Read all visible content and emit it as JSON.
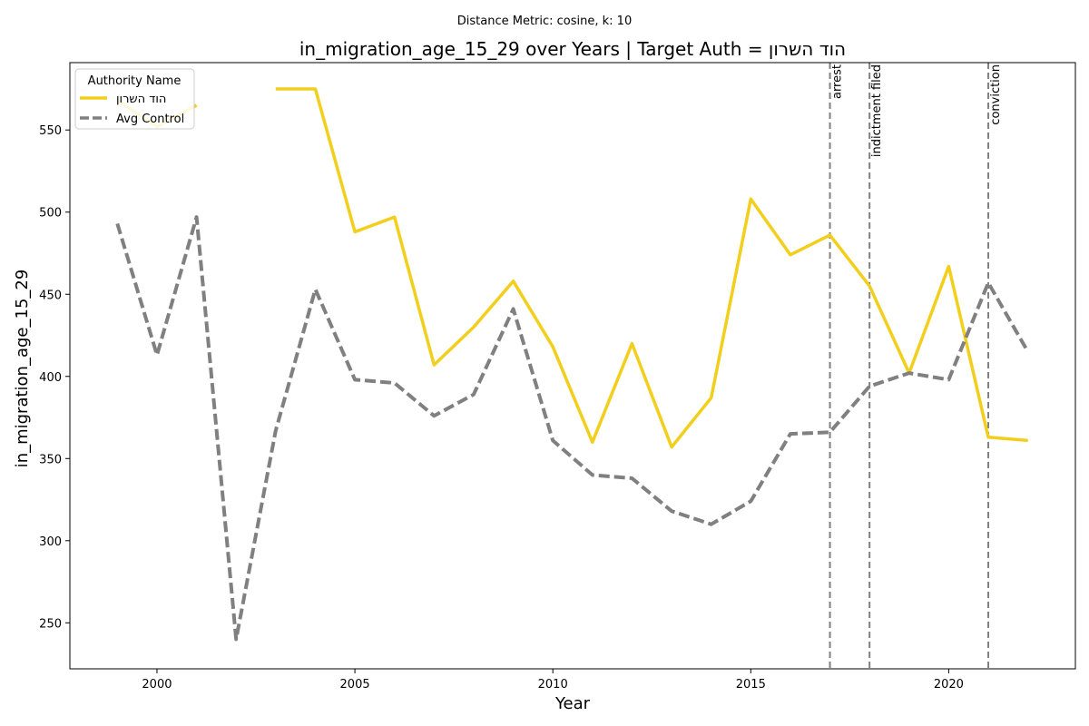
{
  "chart_data": {
    "type": "line",
    "suptitle": "Distance Metric: cosine, k: 10",
    "title": "in_migration_age_15_29 over Years | Target Auth = הוד השרון",
    "xlabel": "Year",
    "ylabel": "in_migration_age_15_29",
    "xlim": [
      1997.8,
      2023.2
    ],
    "ylim": [
      222,
      591
    ],
    "xticks": [
      2000,
      2005,
      2010,
      2015,
      2020
    ],
    "yticks": [
      250,
      300,
      350,
      400,
      450,
      500,
      550
    ],
    "grid": false,
    "legend": {
      "title": "Authority Name",
      "placement": "upper-left"
    },
    "series": [
      {
        "name": "הוד השרון",
        "color": "#f2cf1d",
        "style": "solid",
        "segments": [
          {
            "x": [
              1999,
              2000,
              2001
            ],
            "y": [
              568,
              552,
              565
            ]
          },
          {
            "x": [
              2003,
              2004,
              2005,
              2006,
              2007,
              2008,
              2009,
              2010,
              2011,
              2012,
              2013,
              2014,
              2015,
              2016,
              2017,
              2018,
              2019,
              2020,
              2021,
              2022
            ],
            "y": [
              575,
              575,
              488,
              497,
              407,
              430,
              458,
              418,
              360,
              420,
              357,
              387,
              508,
              474,
              486,
              455,
              402,
              467,
              363,
              361
            ]
          }
        ]
      },
      {
        "name": "Avg Control",
        "color": "#808080",
        "style": "dashed",
        "segments": [
          {
            "x": [
              1999,
              2000,
              2001,
              2002,
              2003,
              2004,
              2005,
              2006,
              2007,
              2008,
              2009,
              2010,
              2011,
              2012,
              2013,
              2014,
              2015,
              2016,
              2017,
              2018,
              2019,
              2020,
              2021,
              2022
            ],
            "y": [
              493,
              413,
              497,
              240,
              367,
              453,
              398,
              396,
              376,
              389,
              441,
              361,
              340,
              338,
              318,
              310,
              324,
              365,
              366,
              394,
              402,
              398,
              457,
              415
            ]
          }
        ]
      }
    ],
    "vlines": [
      {
        "x": 2017,
        "label": "arrest"
      },
      {
        "x": 2018,
        "label": "indictment filed"
      },
      {
        "x": 2021,
        "label": "conviction"
      }
    ]
  }
}
